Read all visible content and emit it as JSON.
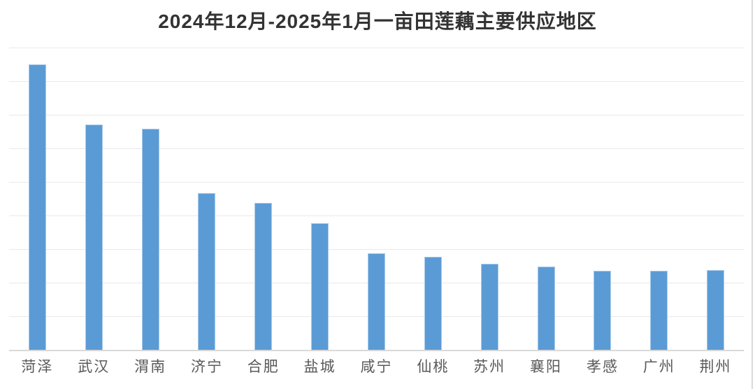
{
  "title": "2024年12月-2025年1月一亩田莲藕主要供应地区",
  "colors": {
    "bar_fill": "#5B9BD5",
    "bar_edge": "#A9CBEC",
    "gridline": "#E9E9E9",
    "baseline": "#D9D9D9",
    "title_text": "#333333",
    "label_text": "#595959",
    "right_edge_line": "#D9D9D9",
    "background": "#FFFFFF"
  },
  "chart_data": {
    "type": "bar",
    "title": "2024年12月-2025年1月一亩田莲藕主要供应地区",
    "categories": [
      "菏泽",
      "武汉",
      "渭南",
      "济宁",
      "合肥",
      "盐城",
      "咸宁",
      "仙桃",
      "苏州",
      "襄阳",
      "孝感",
      "广州",
      "荆州"
    ],
    "values": [
      8.5,
      6.7,
      6.58,
      4.67,
      4.38,
      3.77,
      2.88,
      2.77,
      2.56,
      2.48,
      2.35,
      2.35,
      2.38
    ],
    "xlabel": "",
    "ylabel": "",
    "ylim": [
      0,
      9
    ],
    "gridline_interval": 1,
    "grid": true,
    "legend": false,
    "y_tick_labels_visible": false
  }
}
